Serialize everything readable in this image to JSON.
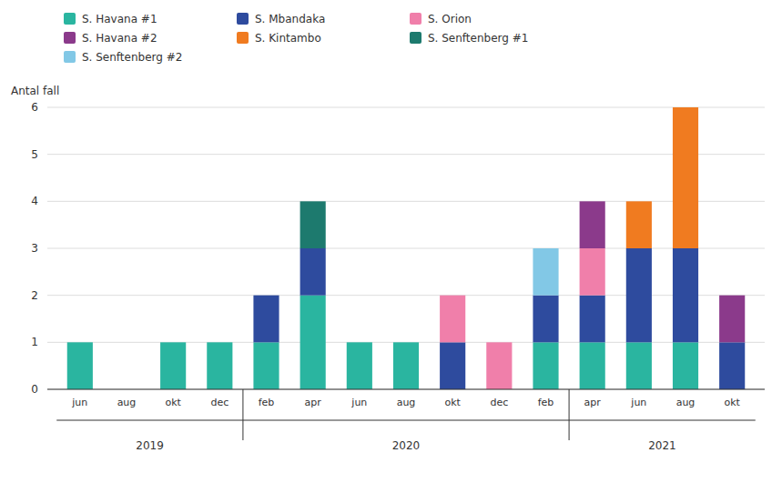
{
  "chart_data": {
    "type": "bar",
    "stacked": true,
    "y_label": "Antal fall",
    "categories": [
      "jun",
      "aug",
      "okt",
      "dec",
      "feb",
      "apr",
      "jun",
      "aug",
      "okt",
      "dec",
      "feb",
      "apr",
      "jun",
      "aug",
      "okt"
    ],
    "series": [
      {
        "name": "S. Havana #1",
        "color": "#2ab5a0",
        "values": [
          1,
          0,
          1,
          1,
          1,
          2,
          1,
          1,
          0,
          0,
          1,
          1,
          1,
          1,
          0
        ]
      },
      {
        "name": "S. Mbandaka",
        "color": "#2e4b9e",
        "values": [
          0,
          0,
          0,
          0,
          1,
          1,
          0,
          0,
          1,
          0,
          1,
          1,
          2,
          2,
          1
        ]
      },
      {
        "name": "S. Orion",
        "color": "#f07faa",
        "values": [
          0,
          0,
          0,
          0,
          0,
          0,
          0,
          0,
          1,
          1,
          0,
          1,
          0,
          0,
          0
        ]
      },
      {
        "name": "S. Havana #2",
        "color": "#8b3a8b",
        "values": [
          0,
          0,
          0,
          0,
          0,
          0,
          0,
          0,
          0,
          0,
          0,
          1,
          0,
          0,
          1
        ]
      },
      {
        "name": "S. Kintambo",
        "color": "#f07b20",
        "values": [
          0,
          0,
          0,
          0,
          0,
          0,
          0,
          0,
          0,
          0,
          0,
          0,
          1,
          3,
          0
        ]
      },
      {
        "name": "S. Senftenberg #1",
        "color": "#1d7a6e",
        "values": [
          0,
          0,
          0,
          0,
          0,
          1,
          0,
          0,
          0,
          0,
          0,
          0,
          0,
          0,
          0
        ]
      },
      {
        "name": "S. Senftenberg #2",
        "color": "#82c8e6",
        "values": [
          0,
          0,
          0,
          0,
          0,
          0,
          0,
          0,
          0,
          0,
          1,
          0,
          0,
          0,
          0
        ]
      }
    ],
    "annotations": [
      {
        "text": "2019",
        "start": 0,
        "end": 3
      },
      {
        "text": "2020",
        "start": 4,
        "end": 10
      },
      {
        "text": "2021",
        "start": 11,
        "end": 14
      }
    ],
    "ylim": [
      0,
      6
    ],
    "yticks": [
      0,
      1,
      2,
      3,
      4,
      5,
      6
    ],
    "grid": true,
    "legend": "top"
  }
}
